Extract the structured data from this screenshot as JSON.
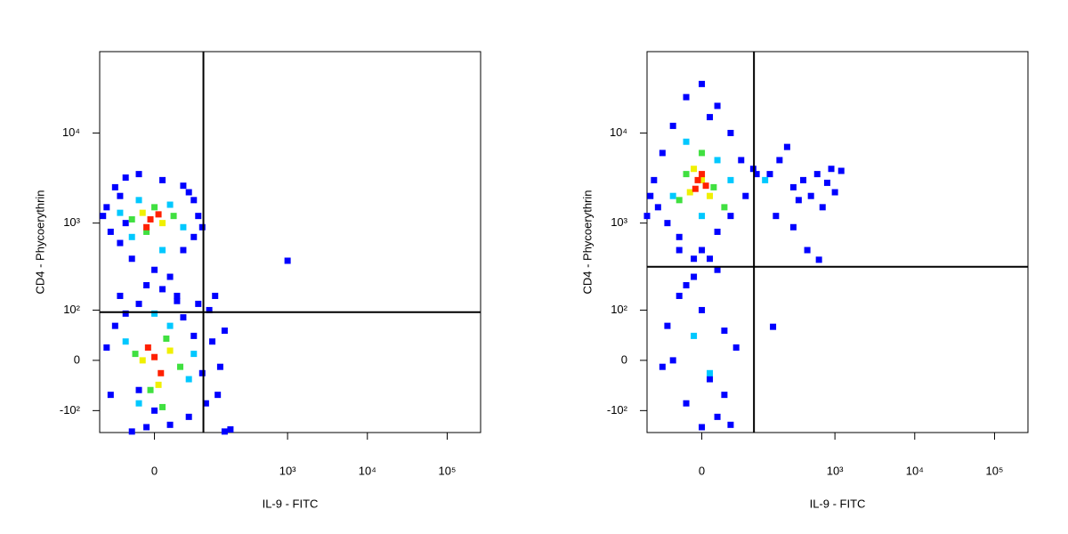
{
  "chart_data": [
    {
      "type": "scatter",
      "xlabel": "IL-9 - FITC",
      "ylabel": "CD4 - Phycoerythrin",
      "xscale": "biexponential",
      "yscale": "biexponential",
      "xlim": [
        -100,
        262144
      ],
      "ylim": [
        -185,
        80000
      ],
      "xticks": [
        0,
        {
          "value": 1000,
          "label": "10³"
        },
        {
          "value": 10000,
          "label": "10⁴"
        },
        {
          "value": 100000,
          "label": "10⁵"
        }
      ],
      "yticks": [
        {
          "value": -100,
          "label": "-10²"
        },
        0,
        {
          "value": 100,
          "label": "10²"
        },
        {
          "value": 1000,
          "label": "10³"
        },
        {
          "value": 10000,
          "label": "10⁴"
        }
      ],
      "gates": {
        "x": 83,
        "y": 94
      },
      "series": [
        {
          "color": "#0000ff",
          "x": [
            -80,
            -60,
            -40,
            -20,
            10,
            40,
            60,
            70,
            -70,
            -50,
            -30,
            0,
            20,
            40,
            60,
            -90,
            -10,
            30,
            -20,
            10,
            50,
            -50,
            80,
            -40,
            -80,
            -60,
            -40,
            -20,
            0,
            20,
            -30,
            40,
            60,
            80,
            110,
            140,
            160,
            130,
            90,
            100,
            -70,
            -10,
            50,
            70,
            190,
            160,
            -50,
            30,
            120,
            1000
          ],
          "values": [
            1500,
            2500,
            3200,
            3500,
            3000,
            2600,
            1800,
            1200,
            800,
            600,
            400,
            300,
            250,
            500,
            700,
            1200,
            200,
            150,
            120,
            180,
            2200,
            2000,
            900,
            1000,
            20,
            60,
            90,
            -50,
            -100,
            -150,
            -180,
            80,
            40,
            -20,
            30,
            -10,
            50,
            -60,
            -80,
            100,
            -60,
            -160,
            -120,
            120,
            -170,
            -180,
            150,
            130,
            150,
            380
          ]
        },
        {
          "color": "#00c8ff",
          "x": [
            -50,
            -20,
            20,
            40,
            -30,
            10,
            -40,
            20,
            50,
            -20,
            60,
            0
          ],
          "values": [
            1300,
            1800,
            1600,
            900,
            700,
            500,
            30,
            60,
            -30,
            -80,
            10,
            90
          ]
        },
        {
          "color": "#40e040",
          "x": [
            -30,
            0,
            25,
            -10,
            -25,
            15,
            35,
            -5,
            10
          ],
          "values": [
            1100,
            1500,
            1200,
            800,
            10,
            35,
            -10,
            -50,
            -90
          ]
        },
        {
          "color": "#f0f000",
          "x": [
            -15,
            10,
            -15,
            20,
            5
          ],
          "values": [
            1300,
            1000,
            0,
            15,
            -40
          ]
        },
        {
          "color": "#ff2000",
          "x": [
            -5,
            5,
            -10,
            0,
            8,
            -8
          ],
          "values": [
            1100,
            1250,
            900,
            5,
            -20,
            20
          ]
        }
      ]
    },
    {
      "type": "scatter",
      "xlabel": "IL-9 - FITC",
      "ylabel": "CD4 - Phycoerythrin",
      "xscale": "biexponential",
      "yscale": "biexponential",
      "xlim": [
        -100,
        262144
      ],
      "ylim": [
        -185,
        80000
      ],
      "xticks": [
        0,
        {
          "value": 1000,
          "label": "10³"
        },
        {
          "value": 10000,
          "label": "10⁴"
        },
        {
          "value": 100000,
          "label": "10⁵"
        }
      ],
      "yticks": [
        {
          "value": -100,
          "label": "-10²"
        },
        0,
        {
          "value": 100,
          "label": "10²"
        },
        {
          "value": 1000,
          "label": "10³"
        },
        {
          "value": 10000,
          "label": "10⁴"
        }
      ],
      "gates": {
        "x": 92,
        "y": 325
      },
      "series": [
        {
          "color": "#0000ff",
          "x": [
            -80,
            -60,
            -40,
            -20,
            0,
            20,
            40,
            60,
            90,
            -90,
            -70,
            -50,
            -30,
            0,
            20,
            40,
            70,
            100,
            -100,
            10,
            -10,
            20,
            -20,
            150,
            200,
            300,
            400,
            500,
            600,
            800,
            1000,
            1200,
            250,
            350,
            700,
            180,
            300,
            450,
            630,
            900,
            -30,
            0,
            30,
            -40,
            10,
            -20,
            20,
            0,
            40,
            -50,
            50,
            -10,
            10,
            -30,
            165,
            30,
            -60
          ],
          "values": [
            3000,
            6000,
            12000,
            25000,
            35000,
            20000,
            10000,
            5000,
            4000,
            2000,
            1500,
            1000,
            700,
            500,
            800,
            1200,
            2000,
            3500,
            1200,
            15000,
            400,
            300,
            200,
            3500,
            5000,
            2500,
            3000,
            2000,
            3500,
            2800,
            2200,
            3800,
            7000,
            1800,
            1500,
            1200,
            900,
            500,
            390,
            4000,
            150,
            100,
            50,
            0,
            -30,
            -80,
            -120,
            -160,
            -150,
            60,
            20,
            250,
            400,
            500,
            58,
            -60,
            -10
          ]
        },
        {
          "color": "#00c8ff",
          "x": [
            -40,
            20,
            -20,
            40,
            0,
            130,
            10,
            -10
          ],
          "values": [
            2000,
            5000,
            8000,
            3000,
            1200,
            3000,
            -20,
            40
          ]
        },
        {
          "color": "#40e040",
          "x": [
            -20,
            15,
            0,
            -30,
            30
          ],
          "values": [
            3500,
            2500,
            6000,
            1800,
            1500
          ]
        },
        {
          "color": "#f0f000",
          "x": [
            -10,
            10,
            0,
            -15
          ],
          "values": [
            4000,
            2000,
            3000,
            2200
          ]
        },
        {
          "color": "#ff2000",
          "x": [
            -5,
            5,
            0,
            -8
          ],
          "values": [
            3000,
            2600,
            3500,
            2400
          ]
        }
      ]
    }
  ]
}
